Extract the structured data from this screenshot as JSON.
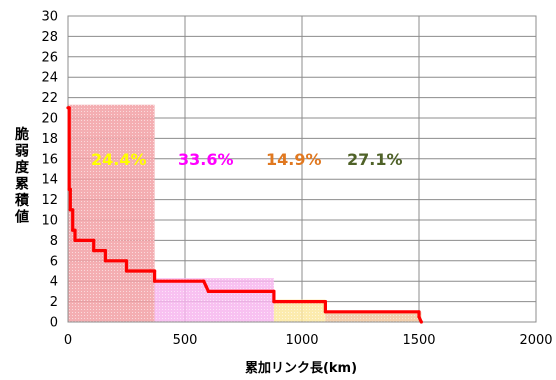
{
  "chart_data": {
    "type": "line",
    "title": "",
    "xlabel": "累加リンク長(km)",
    "ylabel": "脆弱度累積値",
    "xlim": [
      0,
      2000
    ],
    "ylim": [
      0,
      30
    ],
    "x_ticks": [
      "0",
      "500",
      "1000",
      "1500",
      "2000"
    ],
    "y_ticks": [
      "0",
      "2",
      "4",
      "6",
      "8",
      "10",
      "12",
      "14",
      "16",
      "18",
      "20",
      "22",
      "24",
      "26",
      "28",
      "30"
    ],
    "grid": true,
    "series": [
      {
        "color": "#ff0000",
        "step_x": [
          0,
          5,
          5,
          10,
          10,
          20,
          20,
          30,
          30,
          50,
          50,
          110,
          110,
          160,
          160,
          250,
          250,
          350,
          350,
          370,
          370,
          580,
          580,
          590,
          590,
          600,
          600,
          880,
          880,
          1100,
          1100,
          1500,
          1500,
          1510
        ],
        "step_y": [
          21,
          21,
          13,
          13,
          11,
          11,
          9,
          9,
          8,
          8,
          8,
          8,
          7,
          7,
          6,
          6,
          5,
          5,
          5,
          5,
          4,
          4,
          4,
          3.5,
          3.5,
          3,
          3,
          3,
          2,
          2,
          1,
          1,
          0.5,
          0
        ]
      }
    ],
    "regions": [
      {
        "label": "24.4%",
        "x0": 0,
        "x1": 370,
        "height": 21.3,
        "fill": "#f2a0a5",
        "label_color": "#ffff00"
      },
      {
        "label": "33.6%",
        "x0": 370,
        "x1": 880,
        "height": 4.3,
        "fill": "#f7b6ee",
        "label_color": "#ff00ff"
      },
      {
        "label": "14.9%",
        "x0": 880,
        "x1": 1100,
        "height": 2.2,
        "fill": "#fbe8a0",
        "label_color": "#e07820"
      },
      {
        "label": "27.1%",
        "x0": 1100,
        "x1": 1510,
        "height": 1.0,
        "fill": "#f0c8a0",
        "label_color": "#4f6228"
      }
    ],
    "legend": "none"
  }
}
